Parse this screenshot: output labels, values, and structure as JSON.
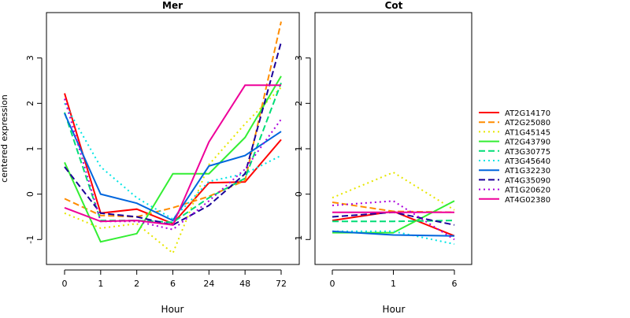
{
  "chart_data": [
    {
      "type": "line",
      "title": "Mer",
      "xlabel": "Hour",
      "ylabel": "centered expression",
      "categories": [
        "0",
        "1",
        "2",
        "6",
        "24",
        "48",
        "72"
      ],
      "ylim": [
        -1.55,
        4.0
      ],
      "yticks": [
        -1,
        0,
        1,
        2,
        3
      ],
      "grid": false,
      "series": [
        {
          "name": "AT2G14170",
          "color": "#ff0000",
          "dash": "solid",
          "values": [
            2.22,
            -0.42,
            -0.33,
            -0.65,
            0.25,
            0.27,
            1.2
          ]
        },
        {
          "name": "AT2G25080",
          "color": "#ff8c00",
          "dash": "dashed",
          "values": [
            -0.1,
            -0.47,
            -0.5,
            -0.3,
            -0.05,
            0.3,
            3.8
          ]
        },
        {
          "name": "AT1G45145",
          "color": "#e6e600",
          "dash": "dotted",
          "values": [
            -0.42,
            -0.75,
            -0.65,
            -1.3,
            0.65,
            1.55,
            2.35
          ]
        },
        {
          "name": "AT2G43790",
          "color": "#33ee33",
          "dash": "solid",
          "values": [
            0.7,
            -1.05,
            -0.87,
            0.45,
            0.45,
            1.25,
            2.6
          ]
        },
        {
          "name": "AT3G30775",
          "color": "#00dd77",
          "dash": "dashed",
          "values": [
            1.8,
            -0.58,
            -0.58,
            -0.62,
            -0.08,
            0.35,
            2.45
          ]
        },
        {
          "name": "AT3G45640",
          "color": "#00e5e5",
          "dash": "dotted",
          "values": [
            2.0,
            0.6,
            -0.08,
            -0.55,
            0.28,
            0.45,
            0.85
          ]
        },
        {
          "name": "AT1G32230",
          "color": "#0066dd",
          "dash": "solid",
          "values": [
            1.78,
            0.0,
            -0.2,
            -0.58,
            0.62,
            0.85,
            1.38
          ]
        },
        {
          "name": "AT4G35090",
          "color": "#1a0099",
          "dash": "dashed",
          "values": [
            0.6,
            -0.42,
            -0.5,
            -0.68,
            -0.25,
            0.45,
            3.35
          ]
        },
        {
          "name": "AT1G20620",
          "color": "#aa00dd",
          "dash": "dotted",
          "values": [
            2.1,
            -0.6,
            -0.6,
            -0.78,
            -0.15,
            0.55,
            1.65
          ]
        },
        {
          "name": "AT4G02380",
          "color": "#ee0099",
          "dash": "solid",
          "values": [
            -0.3,
            -0.6,
            -0.58,
            -0.68,
            1.15,
            2.4,
            2.4
          ]
        }
      ]
    },
    {
      "type": "line",
      "title": "Cot",
      "xlabel": "Hour",
      "categories": [
        "0",
        "1",
        "6"
      ],
      "ylim": [
        -1.55,
        4.0
      ],
      "yticks": [
        -1,
        0,
        1,
        2,
        3
      ],
      "grid": false,
      "series": [
        {
          "name": "AT2G14170",
          "color": "#ff0000",
          "dash": "solid",
          "values": [
            -0.58,
            -0.38,
            -0.92
          ]
        },
        {
          "name": "AT2G25080",
          "color": "#ff8c00",
          "dash": "dashed",
          "values": [
            -0.18,
            -0.38,
            -0.4
          ]
        },
        {
          "name": "AT1G45145",
          "color": "#e6e600",
          "dash": "dotted",
          "values": [
            -0.08,
            0.48,
            -0.35
          ]
        },
        {
          "name": "AT2G43790",
          "color": "#33ee33",
          "dash": "solid",
          "values": [
            -0.85,
            -0.85,
            -0.15
          ]
        },
        {
          "name": "AT3G30775",
          "color": "#00dd77",
          "dash": "dashed",
          "values": [
            -0.6,
            -0.6,
            -0.58
          ]
        },
        {
          "name": "AT3G45640",
          "color": "#00e5e5",
          "dash": "dotted",
          "values": [
            -0.82,
            -0.82,
            -1.1
          ]
        },
        {
          "name": "AT1G32230",
          "color": "#0066dd",
          "dash": "solid",
          "values": [
            -0.82,
            -0.9,
            -0.92
          ]
        },
        {
          "name": "AT4G35090",
          "color": "#1a0099",
          "dash": "dashed",
          "values": [
            -0.5,
            -0.4,
            -0.68
          ]
        },
        {
          "name": "AT1G20620",
          "color": "#aa00dd",
          "dash": "dotted",
          "values": [
            -0.25,
            -0.15,
            -1.0
          ]
        },
        {
          "name": "AT4G02380",
          "color": "#ee0099",
          "dash": "solid",
          "values": [
            -0.4,
            -0.4,
            -0.4
          ]
        }
      ]
    }
  ],
  "legend": {
    "placement": "right",
    "items": [
      {
        "name": "AT2G14170",
        "color": "#ff0000",
        "dash": "solid"
      },
      {
        "name": "AT2G25080",
        "color": "#ff8c00",
        "dash": "dashed"
      },
      {
        "name": "AT1G45145",
        "color": "#e6e600",
        "dash": "dotted"
      },
      {
        "name": "AT2G43790",
        "color": "#33ee33",
        "dash": "solid"
      },
      {
        "name": "AT3G30775",
        "color": "#00dd77",
        "dash": "dashed"
      },
      {
        "name": "AT3G45640",
        "color": "#00e5e5",
        "dash": "dotted"
      },
      {
        "name": "AT1G32230",
        "color": "#0066dd",
        "dash": "solid"
      },
      {
        "name": "AT4G35090",
        "color": "#1a0099",
        "dash": "dashed"
      },
      {
        "name": "AT1G20620",
        "color": "#aa00dd",
        "dash": "dotted"
      },
      {
        "name": "AT4G02380",
        "color": "#ee0099",
        "dash": "solid"
      }
    ]
  }
}
